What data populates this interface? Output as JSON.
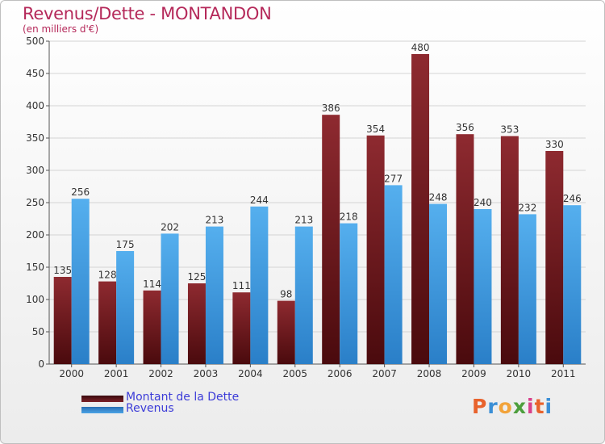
{
  "chart_data": {
    "type": "bar",
    "title": "Revenus/Dette - MONTANDON",
    "subtitle": "(en milliers d'€)",
    "categories": [
      "2000",
      "2001",
      "2002",
      "2003",
      "2004",
      "2005",
      "2006",
      "2007",
      "2008",
      "2009",
      "2010",
      "2011"
    ],
    "series": [
      {
        "name": "Montant de la Dette",
        "values": [
          135,
          128,
          114,
          125,
          111,
          98,
          386,
          354,
          480,
          356,
          353,
          330
        ],
        "color": "#7d2128"
      },
      {
        "name": "Revenus",
        "values": [
          256,
          175,
          202,
          213,
          244,
          213,
          218,
          277,
          248,
          240,
          232,
          246
        ],
        "color": "#4aa3e6"
      }
    ],
    "ylim": [
      0,
      500
    ],
    "yticks": [
      0,
      50,
      100,
      150,
      200,
      250,
      300,
      350,
      400,
      450,
      500
    ],
    "grid": true,
    "legend_position": "bottom-left"
  },
  "logo": {
    "letters": [
      "P",
      "r",
      "o",
      "x",
      "i",
      "t",
      "i"
    ],
    "colors": [
      "#e8622c",
      "#3b8fd6",
      "#f2a33a",
      "#4c9e3c",
      "#d8408a",
      "#e8622c",
      "#3b8fd6"
    ]
  }
}
